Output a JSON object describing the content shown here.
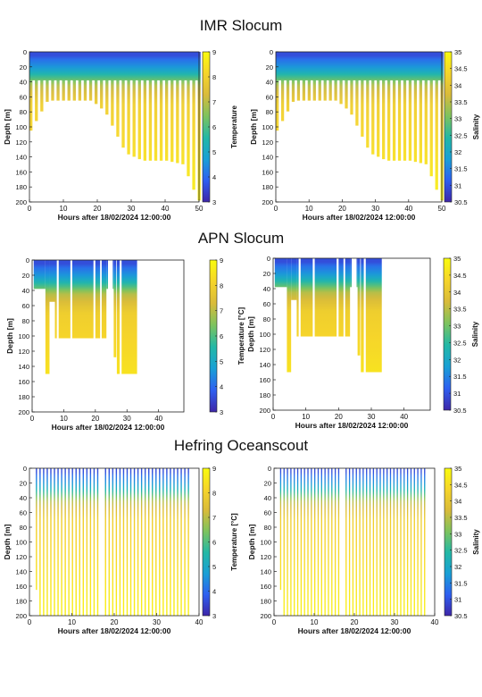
{
  "sections": [
    {
      "title": "IMR Slocum"
    },
    {
      "title": "APN Slocum"
    },
    {
      "title": "Hefring Oceanscout"
    }
  ],
  "colormap": [
    "#3e26a8",
    "#2e5ff0",
    "#19a0d6",
    "#23b8a6",
    "#7dc35e",
    "#d9bb3a",
    "#f6d52a",
    "#f9fb0e"
  ],
  "chart_data": [
    {
      "type": "heatmap",
      "title": "",
      "xlabel": "Hours after 18/02/2024 12:00:00",
      "ylabel": "Depth [m]",
      "colorbar_label": "Temperature",
      "xlim": [
        0,
        50
      ],
      "ylim": [
        200,
        0
      ],
      "xticks": [
        0,
        10,
        20,
        30,
        40,
        50
      ],
      "yticks": [
        0,
        20,
        40,
        60,
        80,
        100,
        120,
        140,
        160,
        180,
        200
      ],
      "cticks": [
        3,
        4,
        5,
        6,
        7,
        8,
        9
      ],
      "clim": [
        3,
        9
      ],
      "profiles": {
        "start": 0,
        "end": 50,
        "spacing": 1.6,
        "max_depth": [
          [
            0,
            105
          ],
          [
            5,
            65
          ],
          [
            18,
            65
          ],
          [
            22,
            80
          ],
          [
            28,
            135
          ],
          [
            33,
            145
          ],
          [
            40,
            145
          ],
          [
            45,
            150
          ],
          [
            49,
            195
          ],
          [
            50,
            200
          ]
        ]
      },
      "surface_layer_depth": 38,
      "surface_data_to": 50
    },
    {
      "type": "heatmap",
      "title": "",
      "xlabel": "Hours after 18/02/2024 12:00:00",
      "ylabel": "Depth [m]",
      "colorbar_label": "Salinity",
      "xlim": [
        0,
        50
      ],
      "ylim": [
        200,
        0
      ],
      "xticks": [
        0,
        10,
        20,
        30,
        40,
        50
      ],
      "yticks": [
        0,
        20,
        40,
        60,
        80,
        100,
        120,
        140,
        160,
        180,
        200
      ],
      "cticks": [
        30.5,
        31,
        31.5,
        32,
        32.5,
        33,
        33.5,
        34,
        34.5,
        35
      ],
      "clim": [
        30.5,
        35
      ],
      "profiles": {
        "start": 0,
        "end": 50,
        "spacing": 1.6,
        "max_depth": [
          [
            0,
            105
          ],
          [
            5,
            65
          ],
          [
            18,
            65
          ],
          [
            22,
            80
          ],
          [
            28,
            135
          ],
          [
            33,
            145
          ],
          [
            40,
            145
          ],
          [
            45,
            150
          ],
          [
            49,
            195
          ],
          [
            50,
            200
          ]
        ]
      },
      "surface_layer_depth": 38,
      "surface_data_to": 50
    },
    {
      "type": "heatmap",
      "title": "",
      "xlabel": "Hours after 18/02/2024 12:00:00",
      "ylabel": "Depth [m]",
      "colorbar_label": "Temperature [°C]",
      "xlim": [
        0,
        48
      ],
      "ylim": [
        200,
        0
      ],
      "xticks": [
        0,
        10,
        20,
        30,
        40
      ],
      "yticks": [
        0,
        20,
        40,
        60,
        80,
        100,
        120,
        140,
        160,
        180,
        200
      ],
      "cticks": [
        3,
        4,
        5,
        6,
        7,
        8,
        9
      ],
      "clim": [
        3,
        9
      ],
      "segments": [
        [
          0.5,
          4.2,
          38
        ],
        [
          4.2,
          5.5,
          150
        ],
        [
          5.5,
          7.2,
          55
        ],
        [
          7.2,
          23.5,
          103
        ],
        [
          23.5,
          25.8,
          38
        ],
        [
          25.8,
          26.6,
          128
        ],
        [
          26.8,
          33.2,
          150
        ]
      ],
      "gaps": [
        [
          7.8,
          8.4
        ],
        [
          12.1,
          12.7
        ],
        [
          19.4,
          20.0
        ],
        [
          21.5,
          22.0
        ],
        [
          24.0,
          25.5
        ],
        [
          27.7,
          28.3
        ]
      ]
    },
    {
      "type": "heatmap",
      "title": "",
      "xlabel": "Hours after 18/02/2024 12:00:00",
      "ylabel": "Depth [m]",
      "colorbar_label": "Salinity",
      "xlim": [
        0,
        48
      ],
      "ylim": [
        200,
        0
      ],
      "xticks": [
        0,
        10,
        20,
        30,
        40
      ],
      "yticks": [
        0,
        20,
        40,
        60,
        80,
        100,
        120,
        140,
        160,
        180,
        200
      ],
      "cticks": [
        30.5,
        31,
        31.5,
        32,
        32.5,
        33,
        33.5,
        34,
        34.5,
        35
      ],
      "clim": [
        30.5,
        35
      ],
      "segments": [
        [
          0.5,
          4.2,
          38
        ],
        [
          4.2,
          5.5,
          150
        ],
        [
          5.5,
          7.2,
          55
        ],
        [
          7.2,
          23.5,
          103
        ],
        [
          23.5,
          25.8,
          38
        ],
        [
          25.8,
          26.6,
          128
        ],
        [
          26.8,
          33.2,
          150
        ]
      ],
      "gaps": [
        [
          7.8,
          8.4
        ],
        [
          12.1,
          12.7
        ],
        [
          19.4,
          20.0
        ],
        [
          21.5,
          22.0
        ],
        [
          24.0,
          25.5
        ],
        [
          27.7,
          28.3
        ]
      ]
    },
    {
      "type": "heatmap",
      "title": "",
      "xlabel": "Hours after 18/02/2024 12:00:00",
      "ylabel": "Depth [m]",
      "colorbar_label": "Temperature [°C]",
      "xlim": [
        0,
        40
      ],
      "ylim": [
        200,
        0
      ],
      "xticks": [
        0,
        10,
        20,
        30,
        40
      ],
      "yticks": [
        0,
        20,
        40,
        60,
        80,
        100,
        120,
        140,
        160,
        180,
        200
      ],
      "cticks": [
        3,
        4,
        5,
        6,
        7,
        8,
        9
      ],
      "clim": [
        3,
        9
      ],
      "yo_runs": [
        [
          1.5,
          16.0
        ],
        [
          17.8,
          38.0
        ]
      ],
      "yo_period": 0.85,
      "yo_depth": 200,
      "yo_first_depth": 165
    },
    {
      "type": "heatmap",
      "title": "",
      "xlabel": "Hours after 18/02/2024 12:00:00",
      "ylabel": "Depth [m]",
      "colorbar_label": "Salinity",
      "xlim": [
        0,
        40
      ],
      "ylim": [
        200,
        0
      ],
      "xticks": [
        0,
        10,
        20,
        30,
        40
      ],
      "yticks": [
        0,
        20,
        40,
        60,
        80,
        100,
        120,
        140,
        160,
        180,
        200
      ],
      "cticks": [
        30.5,
        31,
        31.5,
        32,
        32.5,
        33,
        33.5,
        34,
        34.5,
        35
      ],
      "clim": [
        30.5,
        35
      ],
      "yo_runs": [
        [
          1.5,
          16.0
        ],
        [
          17.8,
          38.0
        ]
      ],
      "yo_period": 0.85,
      "yo_depth": 200,
      "yo_first_depth": 165
    }
  ]
}
